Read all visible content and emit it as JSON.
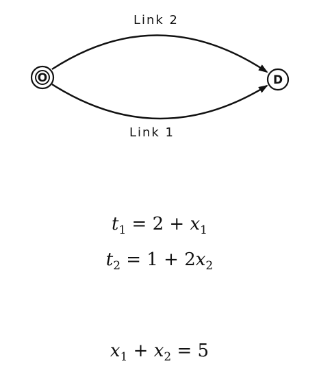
{
  "diagram": {
    "origin_node": "O",
    "destination_node": "D",
    "links": [
      {
        "label": "Link 2",
        "position": "upper"
      },
      {
        "label": "Link 1",
        "position": "lower"
      }
    ],
    "colors": {
      "stroke": "#111111",
      "background": "#ffffff"
    }
  },
  "equations": {
    "cost_functions": [
      {
        "var": "t",
        "sub": "1",
        "rest_a": " = 2 + ",
        "var2": "x",
        "sub2": "1",
        "rest_b": ""
      },
      {
        "var": "t",
        "sub": "2",
        "rest_a": " = 1 + 2",
        "var2": "x",
        "sub2": "2",
        "rest_b": ""
      }
    ],
    "demand": {
      "var_a": "x",
      "sub_a": "1",
      "op": " + ",
      "var_b": "x",
      "sub_b": "2",
      "rest": " = 5"
    }
  }
}
